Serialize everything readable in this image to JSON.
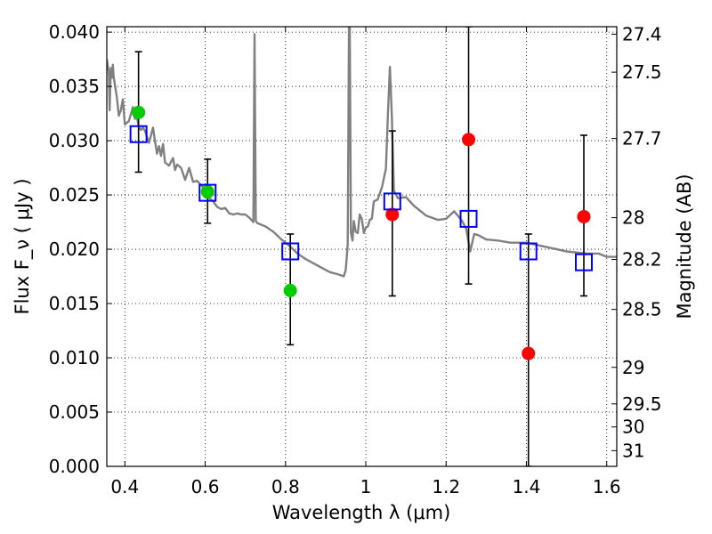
{
  "chart_data": {
    "type": "scatter",
    "xlabel": "Wavelength  λ (μm)",
    "ylabel": "Flux  F_ν  ( μJy )",
    "y2label": "Magnitude (AB)",
    "xlim": [
      0.355,
      1.625
    ],
    "ylim": [
      0.0,
      0.0405
    ],
    "grid": true,
    "x_ticks": [
      0.4,
      0.6,
      0.8,
      1.0,
      1.2,
      1.4,
      1.6
    ],
    "x_tick_labels": [
      "0.4",
      "0.6",
      "0.8",
      "1",
      "1.2",
      "1.4",
      "1.6"
    ],
    "y_ticks": [
      0.0,
      0.005,
      0.01,
      0.015,
      0.02,
      0.025,
      0.03,
      0.035,
      0.04
    ],
    "y_tick_labels": [
      "0.000",
      "0.005",
      "0.010",
      "0.015",
      "0.020",
      "0.025",
      "0.030",
      "0.035",
      "0.040"
    ],
    "mag_ticks": [
      27.4,
      27.5,
      27.7,
      28,
      28.2,
      28.5,
      29,
      29.5,
      30,
      31
    ],
    "mag_tick_labels": [
      "27.4",
      "27.5",
      "27.7",
      "28",
      "28.2",
      "28.5",
      "29",
      "29.5",
      "30",
      "31"
    ],
    "series": [
      {
        "style": "line",
        "color": "#808080",
        "x": [
          0.355,
          0.36,
          0.362,
          0.365,
          0.368,
          0.37,
          0.372,
          0.375,
          0.38,
          0.385,
          0.39,
          0.395,
          0.4,
          0.41,
          0.42,
          0.425,
          0.43,
          0.435,
          0.44,
          0.445,
          0.45,
          0.46,
          0.47,
          0.475,
          0.48,
          0.485,
          0.49,
          0.495,
          0.5,
          0.51,
          0.52,
          0.525,
          0.53,
          0.54,
          0.55,
          0.56,
          0.57,
          0.58,
          0.6,
          0.61,
          0.62,
          0.63,
          0.64,
          0.65,
          0.66,
          0.67,
          0.68,
          0.69,
          0.7,
          0.71,
          0.72,
          0.723,
          0.726,
          0.73,
          0.75,
          0.77,
          0.79,
          0.81,
          0.83,
          0.85,
          0.87,
          0.89,
          0.91,
          0.93,
          0.945,
          0.95,
          0.955,
          0.958,
          0.96,
          0.963,
          0.967,
          0.97,
          0.975,
          0.98,
          0.985,
          0.99,
          0.995,
          1.0,
          1.005,
          1.01,
          1.015,
          1.02,
          1.03,
          1.04,
          1.05,
          1.055,
          1.06,
          1.065,
          1.07,
          1.08,
          1.1,
          1.12,
          1.15,
          1.18,
          1.2,
          1.22,
          1.24,
          1.25,
          1.26,
          1.27,
          1.28,
          1.3,
          1.33,
          1.36,
          1.4,
          1.45,
          1.5,
          1.55,
          1.58,
          1.6,
          1.625
        ],
        "y": [
          0.0375,
          0.0363,
          0.0328,
          0.0367,
          0.0358,
          0.037,
          0.0359,
          0.0352,
          0.034,
          0.0323,
          0.0328,
          0.0338,
          0.0315,
          0.0318,
          0.0331,
          0.032,
          0.0322,
          0.0312,
          0.031,
          0.0312,
          0.0309,
          0.0298,
          0.0312,
          0.03,
          0.0288,
          0.0295,
          0.0286,
          0.0297,
          0.028,
          0.0277,
          0.0284,
          0.0273,
          0.0278,
          0.0275,
          0.0264,
          0.0275,
          0.0262,
          0.0263,
          0.0255,
          0.0247,
          0.0244,
          0.0239,
          0.0237,
          0.0238,
          0.0233,
          0.0232,
          0.0233,
          0.0232,
          0.0232,
          0.0229,
          0.0225,
          0.0398,
          0.0226,
          0.0224,
          0.0221,
          0.0216,
          0.0209,
          0.0203,
          0.0196,
          0.0191,
          0.0187,
          0.0183,
          0.0179,
          0.0177,
          0.0175,
          0.0181,
          0.0205,
          0.0405,
          0.0405,
          0.0215,
          0.0208,
          0.0226,
          0.0216,
          0.0215,
          0.0232,
          0.0228,
          0.0215,
          0.022,
          0.0221,
          0.0227,
          0.0228,
          0.0244,
          0.0246,
          0.0257,
          0.0274,
          0.0323,
          0.0368,
          0.0322,
          0.0254,
          0.0247,
          0.0248,
          0.024,
          0.0231,
          0.0227,
          0.0228,
          0.0235,
          0.0226,
          0.0219,
          0.0198,
          0.0214,
          0.0213,
          0.0209,
          0.0208,
          0.0206,
          0.0206,
          0.0202,
          0.0198,
          0.0196,
          0.0196,
          0.0193,
          0.0193
        ]
      },
      {
        "style": "filled-circle",
        "color": "#00cc00",
        "x": [
          0.434,
          0.606,
          0.812
        ],
        "y": [
          0.0326,
          0.0253,
          0.0162
        ]
      },
      {
        "style": "filled-circle",
        "color": "#ff0000",
        "x": [
          1.066,
          1.256,
          1.405,
          1.543
        ],
        "y": [
          0.0232,
          0.0301,
          0.0104,
          0.023
        ]
      },
      {
        "style": "open-square",
        "color": "#0000ff",
        "x": [
          0.434,
          0.606,
          0.812,
          1.066,
          1.256,
          1.405,
          1.543
        ],
        "y": [
          0.0306,
          0.0252,
          0.0198,
          0.0244,
          0.0228,
          0.0198,
          0.0188
        ]
      },
      {
        "style": "errorbar",
        "color": "#000000",
        "x": [
          0.434,
          0.606,
          0.812,
          1.066,
          1.256,
          1.405,
          1.543
        ],
        "ylow": [
          0.0271,
          0.0224,
          0.0112,
          0.0157,
          0.0168,
          0.0,
          0.0157
        ],
        "yhigh": [
          0.0382,
          0.0283,
          0.0214,
          0.0309,
          0.0405,
          0.0214,
          0.0305
        ]
      }
    ]
  }
}
